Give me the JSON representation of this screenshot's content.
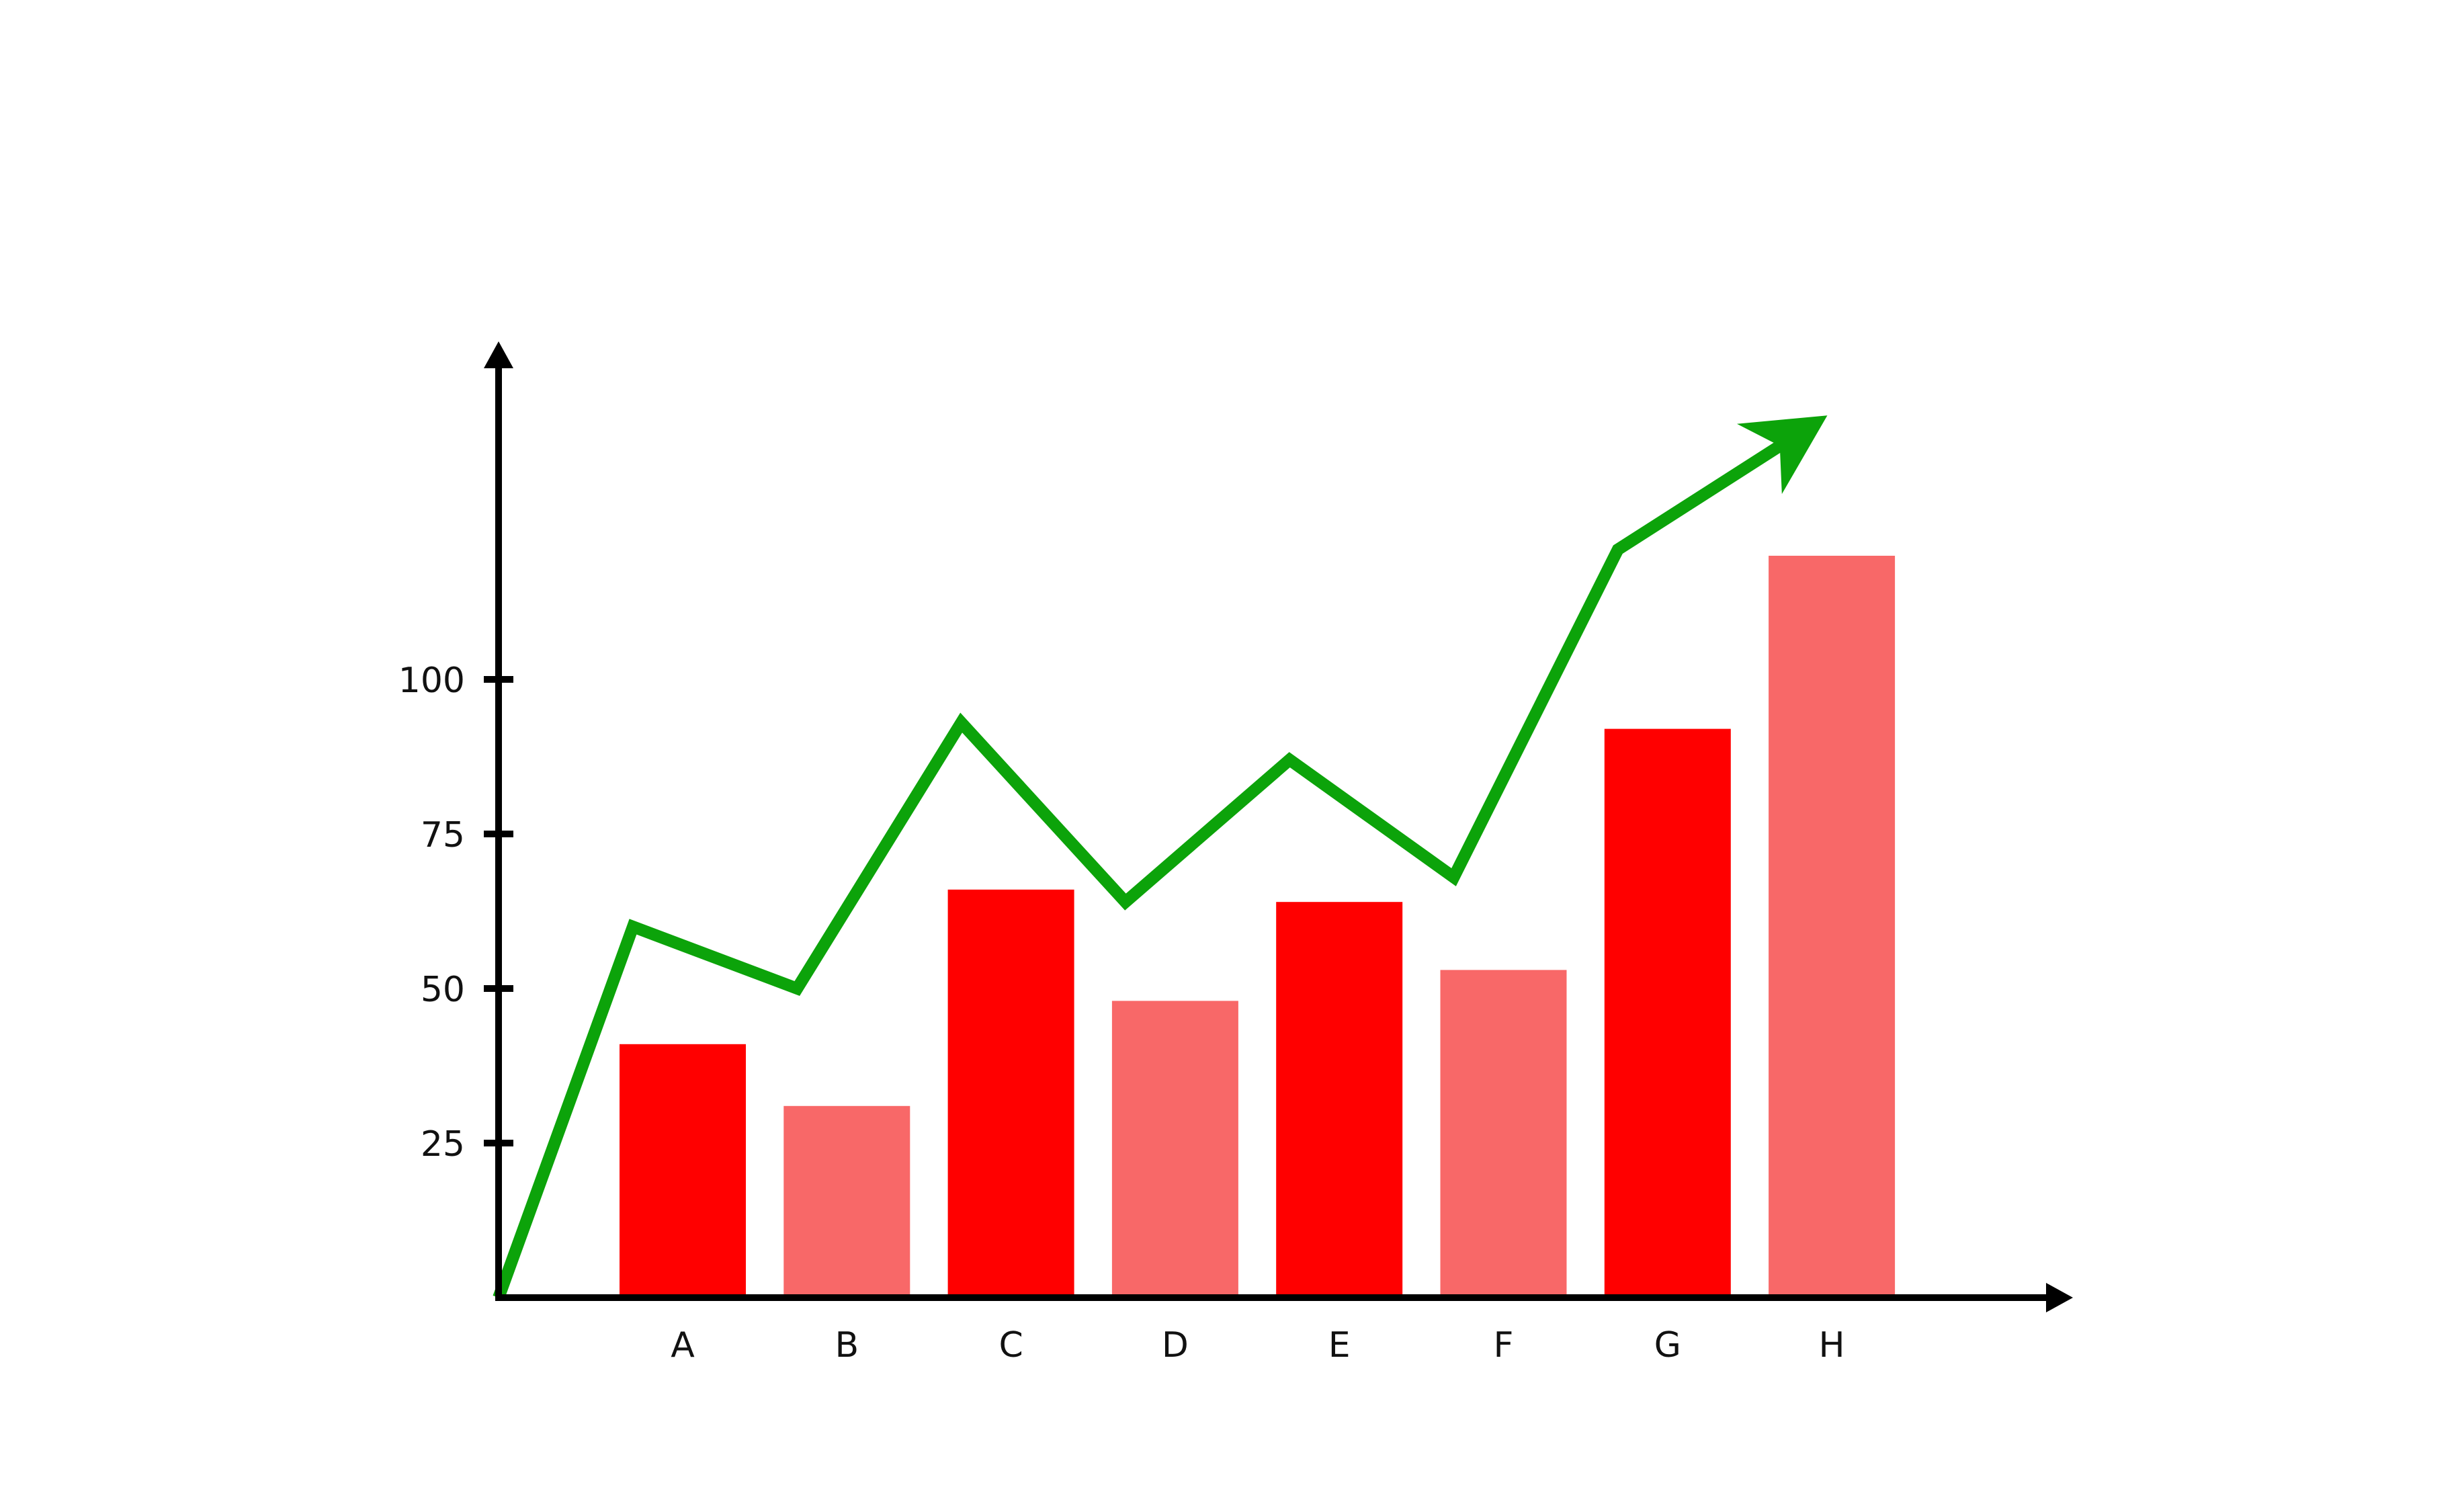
{
  "chart_data": {
    "type": "bar",
    "title": "",
    "xlabel": "",
    "ylabel": "",
    "categories": [
      "A",
      "B",
      "C",
      "D",
      "E",
      "F",
      "G",
      "H"
    ],
    "values": [
      41,
      31,
      66,
      48,
      64,
      53,
      92,
      120
    ],
    "ylim": [
      0,
      150
    ],
    "yticks": [
      25,
      50,
      75,
      100
    ],
    "ytick_labels": [
      "25",
      "50",
      "75",
      "100"
    ],
    "grid": false,
    "legend": "none",
    "bar_colors": [
      "#ff0000",
      "#f86868",
      "#ff0000",
      "#f86868",
      "#ff0000",
      "#f86868",
      "#ff0000",
      "#f86868"
    ],
    "trend_line": {
      "values": [
        0,
        60,
        50,
        93,
        64,
        87,
        68,
        121,
        138
      ],
      "color": "#0ca30a",
      "arrow": true
    },
    "axis_color": "#000000",
    "axes_arrows": true
  }
}
